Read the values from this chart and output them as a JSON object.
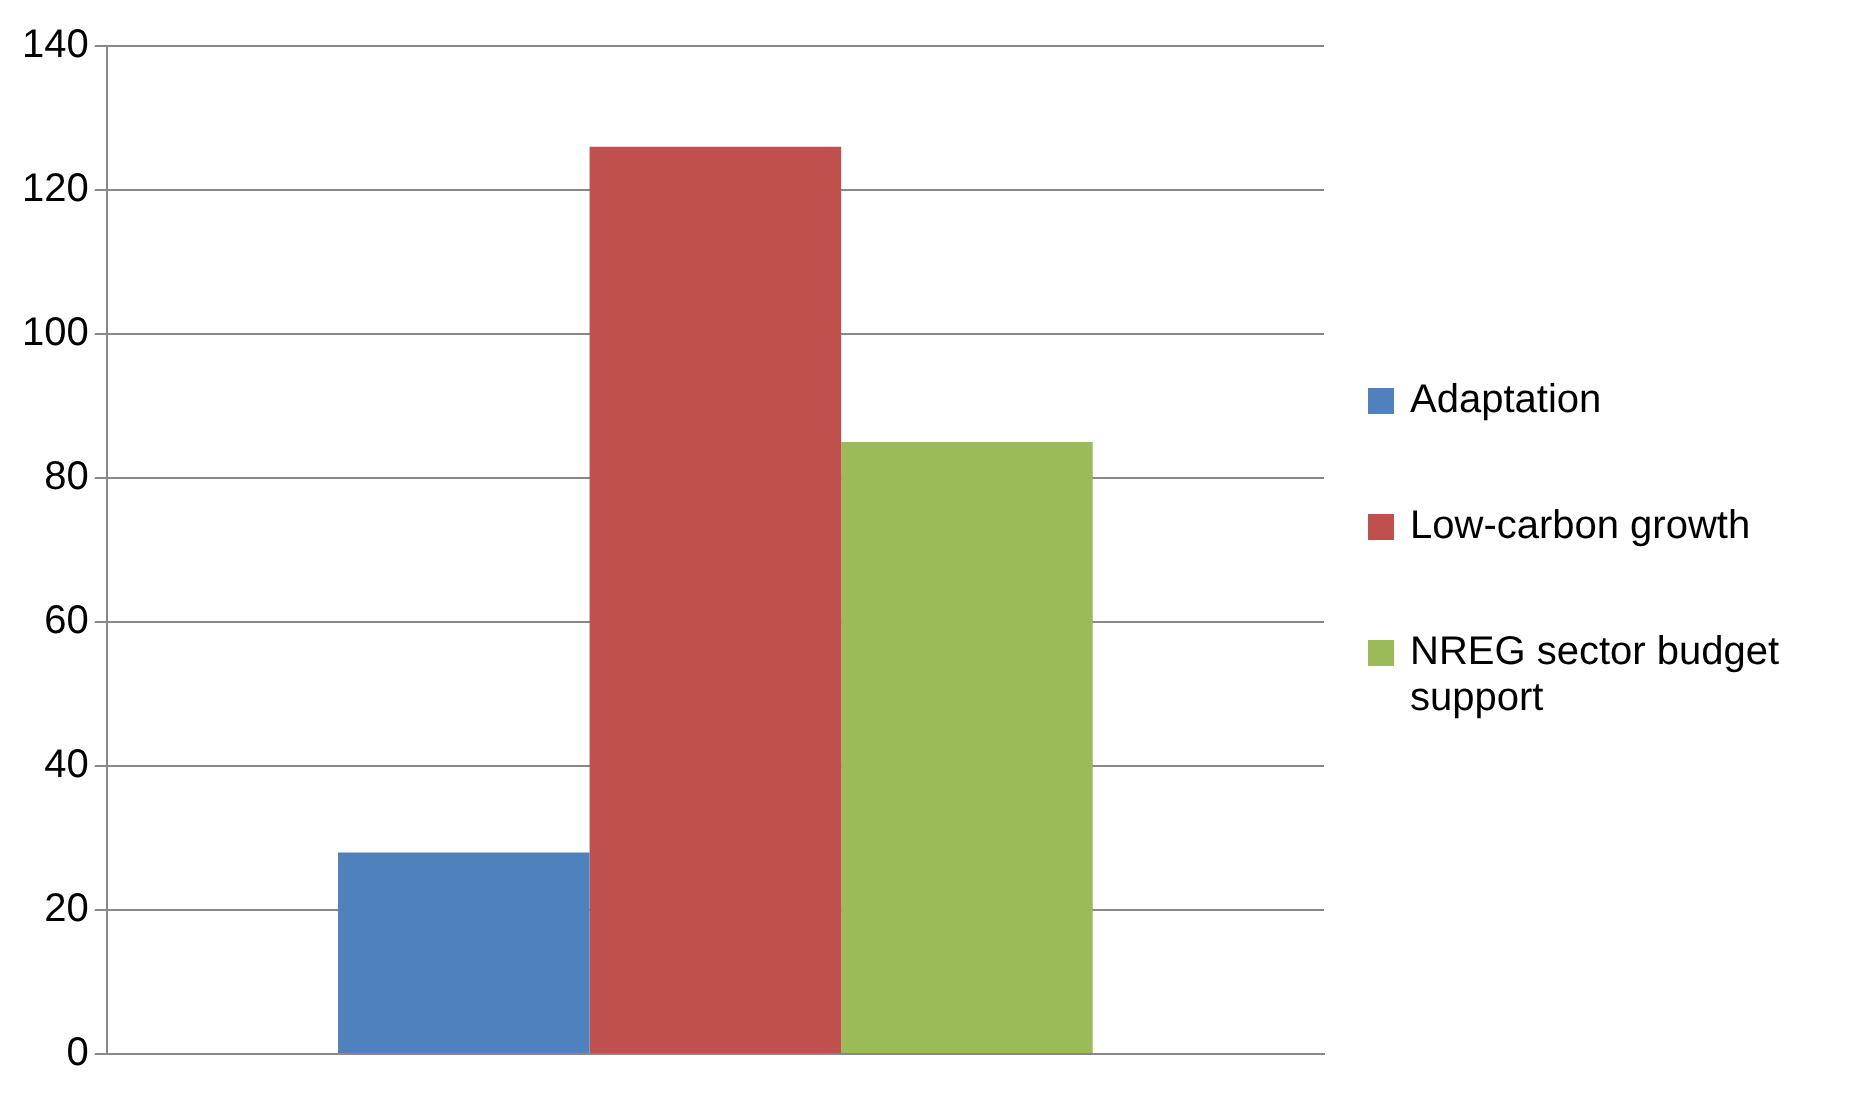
{
  "chart_data": {
    "type": "bar",
    "categories": [
      null
    ],
    "series": [
      {
        "name": "Adaptation",
        "color": "#4f81bd",
        "values": [
          28
        ]
      },
      {
        "name": "Low-carbon growth",
        "color": "#c0504d",
        "values": [
          126
        ]
      },
      {
        "name": "NREG sector budget support",
        "color": "#9bbb59",
        "values": [
          85
        ]
      }
    ],
    "ylim": [
      0,
      140
    ],
    "yticks": [
      0,
      20,
      40,
      60,
      80,
      100,
      120,
      140
    ],
    "grid": "y",
    "legend": "right"
  }
}
